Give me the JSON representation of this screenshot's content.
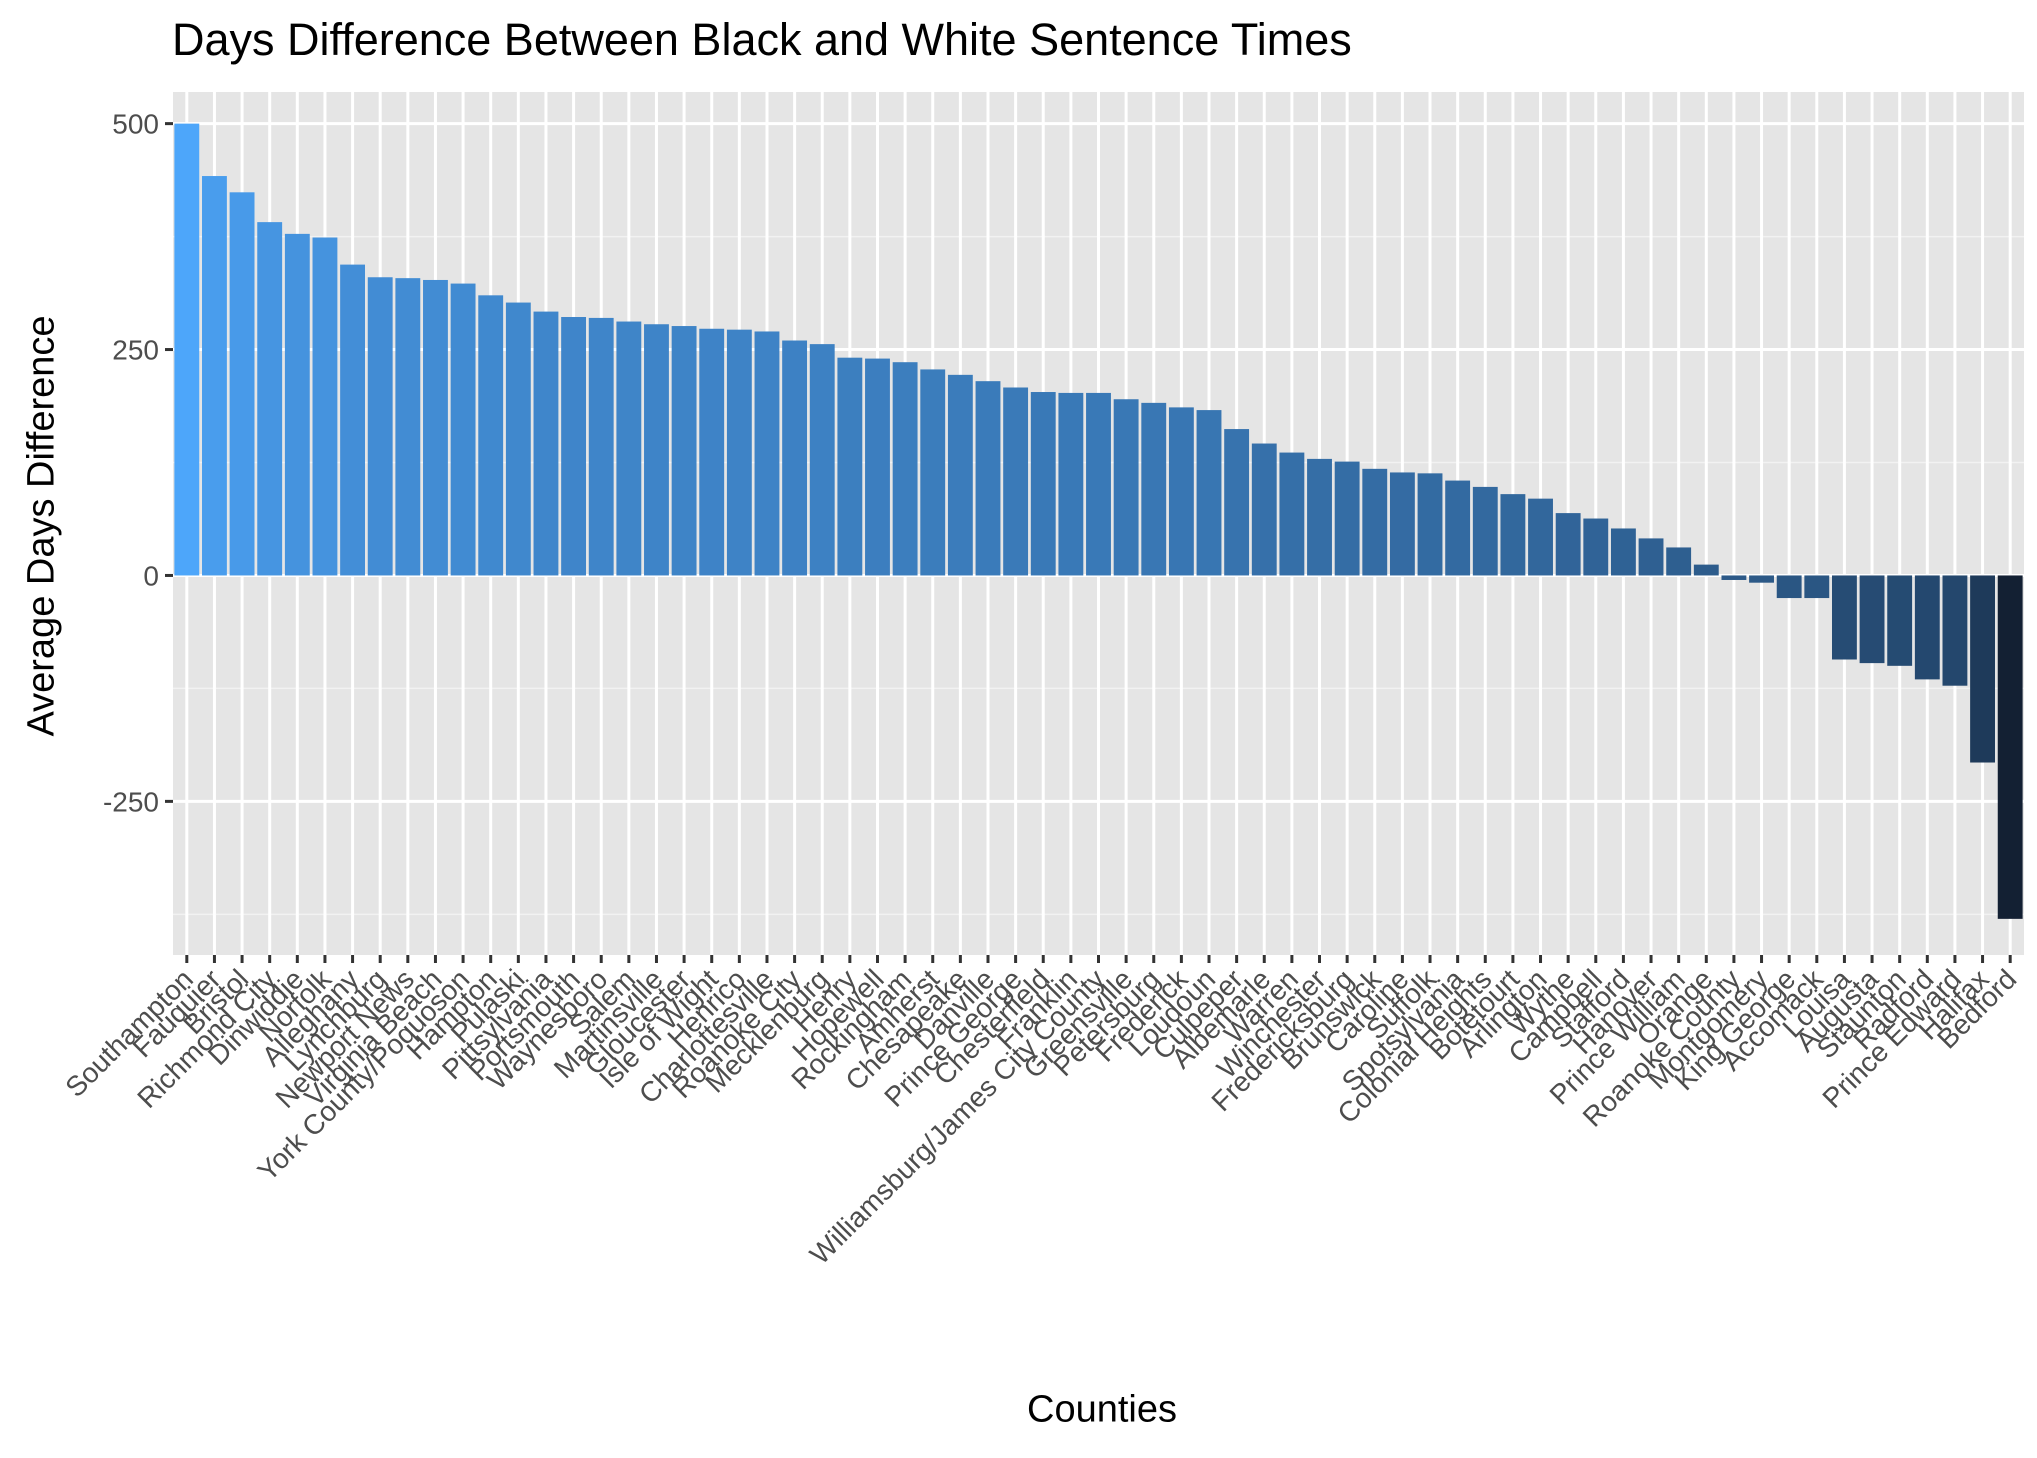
{
  "chart_data": {
    "type": "bar",
    "title": "Days Difference Between Black and White Sentence Times",
    "xlabel": "Counties",
    "ylabel": "Average Days Difference",
    "ylim": [
      -420,
      535
    ],
    "yticks": [
      -250,
      0,
      250,
      500
    ],
    "grid": true,
    "legend": "none",
    "bar_color_high": "#4da6fa",
    "bar_color_low": "#132033",
    "panel_background": "#e5e5e5",
    "categories": [
      "Southampton",
      "Fauquier",
      "Bristol",
      "Richmond City",
      "Dinwiddie",
      "Norfolk",
      "Alleghany",
      "Lynchburg",
      "Newport News",
      "Virginia Beach",
      "York County/Poquoson",
      "Hampton",
      "Pulaski",
      "Pittsylvania",
      "Portsmouth",
      "Waynesboro",
      "Salem",
      "Martinsville",
      "Gloucester",
      "Isle of Wight",
      "Henrico",
      "Charlottesville",
      "Roanoke City",
      "Mecklenburg",
      "Henry",
      "Hopewell",
      "Rockingham",
      "Amherst",
      "Chesapeake",
      "Danville",
      "Prince George",
      "Chesterfield",
      "Franklin",
      "Williamsburg/James City County",
      "Greensville",
      "Petersburg",
      "Frederick",
      "Loudoun",
      "Culpeper",
      "Albemarle",
      "Warren",
      "Winchester",
      "Fredericksburg",
      "Brunswick",
      "Caroline",
      "Suffolk",
      "Spotsylvania",
      "Colonial Heights",
      "Botetourt",
      "Arlington",
      "Wythe",
      "Campbell",
      "Stafford",
      "Hanover",
      "Prince William",
      "Orange",
      "Roanoke County",
      "Montgomery",
      "King George",
      "Accomack",
      "Louisa",
      "Augusta",
      "Staunton",
      "Radford",
      "Prince Edward",
      "Halifax",
      "Bedford"
    ],
    "values": [
      500,
      442,
      424,
      391,
      378,
      374,
      344,
      330,
      329,
      327,
      323,
      310,
      302,
      292,
      286,
      285,
      281,
      278,
      276,
      273,
      272,
      270,
      260,
      256,
      241,
      240,
      236,
      228,
      222,
      215,
      208,
      203,
      202,
      202,
      195,
      191,
      186,
      183,
      162,
      146,
      136,
      129,
      126,
      118,
      114,
      113,
      105,
      98,
      90,
      85,
      69,
      63,
      52,
      41,
      31,
      12,
      -5,
      -8,
      -25,
      -25,
      -93,
      -97,
      -100,
      -115,
      -122,
      -207,
      -380
    ]
  }
}
